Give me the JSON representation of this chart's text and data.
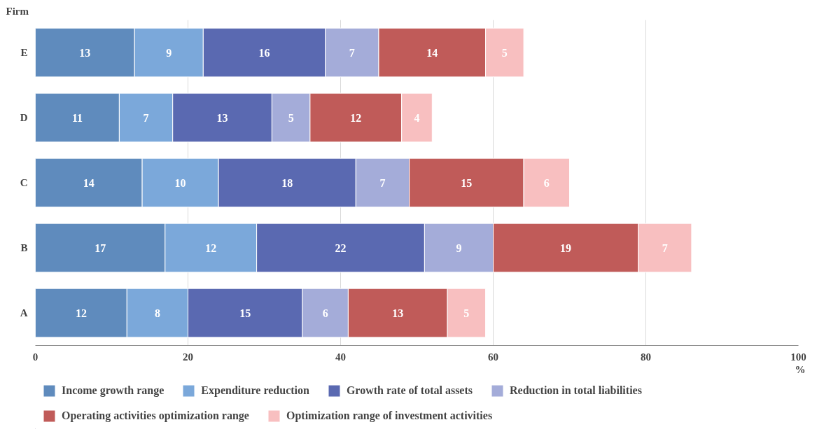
{
  "chart_data": {
    "type": "bar",
    "orientation": "horizontal",
    "stacked": true,
    "ylabel": "Firm",
    "xlabel": "%",
    "categories": [
      "E",
      "D",
      "C",
      "B",
      "A"
    ],
    "series": [
      {
        "name": "Income growth range",
        "color": "#5f8bbd",
        "values": [
          13,
          11,
          14,
          17,
          12
        ]
      },
      {
        "name": "Expenditure reduction",
        "color": "#7ba8da",
        "values": [
          9,
          7,
          10,
          12,
          8
        ]
      },
      {
        "name": "Growth rate of total assets",
        "color": "#5a69b1",
        "values": [
          16,
          13,
          18,
          22,
          15
        ]
      },
      {
        "name": "Reduction in total liabilities",
        "color": "#a4acd9",
        "values": [
          7,
          5,
          7,
          9,
          6
        ]
      },
      {
        "name": "Operating activities optimization range",
        "color": "#c05b59",
        "values": [
          14,
          12,
          15,
          19,
          13
        ]
      },
      {
        "name": "Optimization range of investment activities",
        "color": "#f8bfc0",
        "values": [
          5,
          4,
          6,
          7,
          5
        ]
      }
    ],
    "xlim": [
      0,
      100
    ],
    "xticks": [
      0,
      20,
      40,
      60,
      80,
      100
    ],
    "grid": "x",
    "legend": "bottom",
    "data_labels": true
  }
}
